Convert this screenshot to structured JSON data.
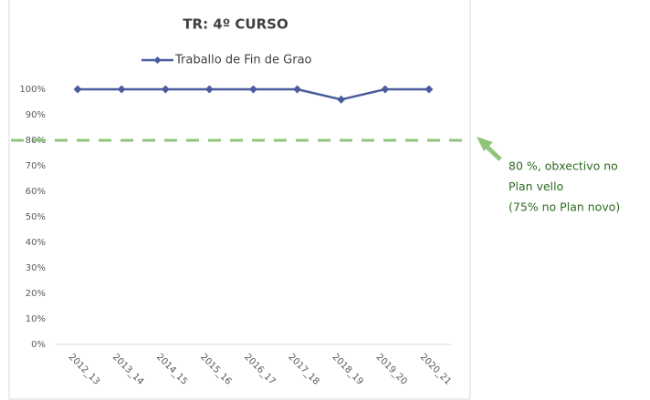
{
  "chart_data": {
    "type": "line",
    "title": "TR: 4º CURSO",
    "categories": [
      "2012_13",
      "2013_14",
      "2014_15",
      "2015_16",
      "2016_17",
      "2017_18",
      "2018_19",
      "2019_20",
      "2020_21"
    ],
    "series": [
      {
        "name": "Traballo de Fin de Grao",
        "color": "#4a5c9e",
        "values": [
          100,
          100,
          100,
          100,
          100,
          100,
          96,
          100,
          100
        ]
      }
    ],
    "ylim": [
      0,
      100
    ],
    "yticks": [
      {
        "value": 0,
        "label": "0%"
      },
      {
        "value": 10,
        "label": "10%"
      },
      {
        "value": 20,
        "label": "20%"
      },
      {
        "value": 30,
        "label": "30%"
      },
      {
        "value": 40,
        "label": "40%"
      },
      {
        "value": 50,
        "label": "50%"
      },
      {
        "value": 60,
        "label": "60%"
      },
      {
        "value": 70,
        "label": "70%"
      },
      {
        "value": 80,
        "label": "80%"
      },
      {
        "value": 90,
        "label": "90%"
      },
      {
        "value": 100,
        "label": "100%"
      }
    ],
    "legend": "top",
    "reference_line": {
      "value": 80,
      "color": "#8fc57a"
    },
    "annotation": [
      "80 %, obxectivo no",
      "Plan vello",
      "(75% no Plan novo)"
    ]
  }
}
